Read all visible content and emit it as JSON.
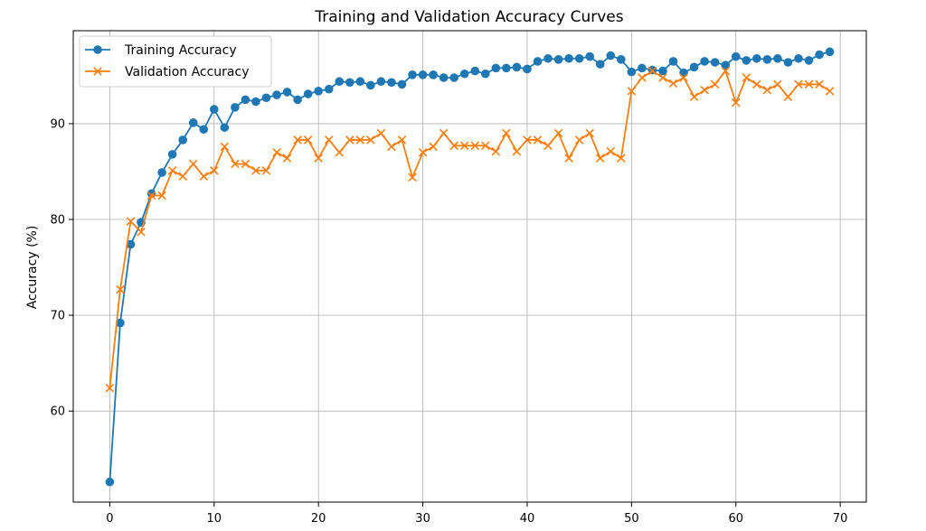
{
  "chart_data": {
    "type": "line",
    "title": "Training and Validation Accuracy Curves",
    "xlabel": "",
    "ylabel": "Accuracy (%)",
    "xlim": [
      -3.5,
      72.5
    ],
    "ylim": [
      50.5,
      99.7
    ],
    "xticks": [
      0,
      10,
      20,
      30,
      40,
      50,
      60,
      70
    ],
    "yticks": [
      60,
      70,
      80,
      90
    ],
    "grid": true,
    "legend_position": "top-left",
    "x": [
      0,
      1,
      2,
      3,
      4,
      5,
      6,
      7,
      8,
      9,
      10,
      11,
      12,
      13,
      14,
      15,
      16,
      17,
      18,
      19,
      20,
      21,
      22,
      23,
      24,
      25,
      26,
      27,
      28,
      29,
      30,
      31,
      32,
      33,
      34,
      35,
      36,
      37,
      38,
      39,
      40,
      41,
      42,
      43,
      44,
      45,
      46,
      47,
      48,
      49,
      50,
      51,
      52,
      53,
      54,
      55,
      56,
      57,
      58,
      59,
      60,
      61,
      62,
      63,
      64,
      65,
      66,
      67,
      68,
      69
    ],
    "series": [
      {
        "name": "Training Accuracy",
        "color": "#1f77b4",
        "marker": "circle",
        "values": [
          52.6,
          69.2,
          77.4,
          79.7,
          82.7,
          84.9,
          86.8,
          88.3,
          90.1,
          89.4,
          91.5,
          89.6,
          91.7,
          92.5,
          92.3,
          92.7,
          93.0,
          93.3,
          92.5,
          93.1,
          93.4,
          93.6,
          94.4,
          94.3,
          94.4,
          94.0,
          94.4,
          94.3,
          94.1,
          95.1,
          95.1,
          95.1,
          94.8,
          94.8,
          95.2,
          95.5,
          95.2,
          95.8,
          95.8,
          95.9,
          95.7,
          96.5,
          96.8,
          96.7,
          96.8,
          96.8,
          97.0,
          96.2,
          97.1,
          96.7,
          95.4,
          95.8,
          95.6,
          95.5,
          96.5,
          95.3,
          95.9,
          96.5,
          96.4,
          96.1,
          97.0,
          96.6,
          96.8,
          96.7,
          96.8,
          96.4,
          96.8,
          96.6,
          97.2,
          97.5
        ]
      },
      {
        "name": "Validation Accuracy",
        "color": "#ff7f0e",
        "marker": "x",
        "values": [
          62.4,
          72.7,
          79.8,
          78.7,
          82.5,
          82.5,
          85.1,
          84.5,
          85.8,
          84.5,
          85.1,
          87.6,
          85.8,
          85.8,
          85.1,
          85.1,
          87.0,
          86.4,
          88.3,
          88.3,
          86.4,
          88.3,
          87.0,
          88.3,
          88.3,
          88.3,
          89.0,
          87.6,
          88.3,
          84.4,
          87.0,
          87.6,
          89.0,
          87.7,
          87.7,
          87.7,
          87.7,
          87.1,
          89.0,
          87.1,
          88.3,
          88.3,
          87.7,
          89.0,
          86.4,
          88.3,
          89.0,
          86.4,
          87.1,
          86.4,
          93.4,
          94.8,
          95.5,
          94.8,
          94.2,
          94.8,
          92.8,
          93.5,
          94.1,
          95.5,
          92.2,
          94.8,
          94.1,
          93.5,
          94.1,
          92.8,
          94.1,
          94.1,
          94.1,
          93.4
        ]
      }
    ]
  }
}
